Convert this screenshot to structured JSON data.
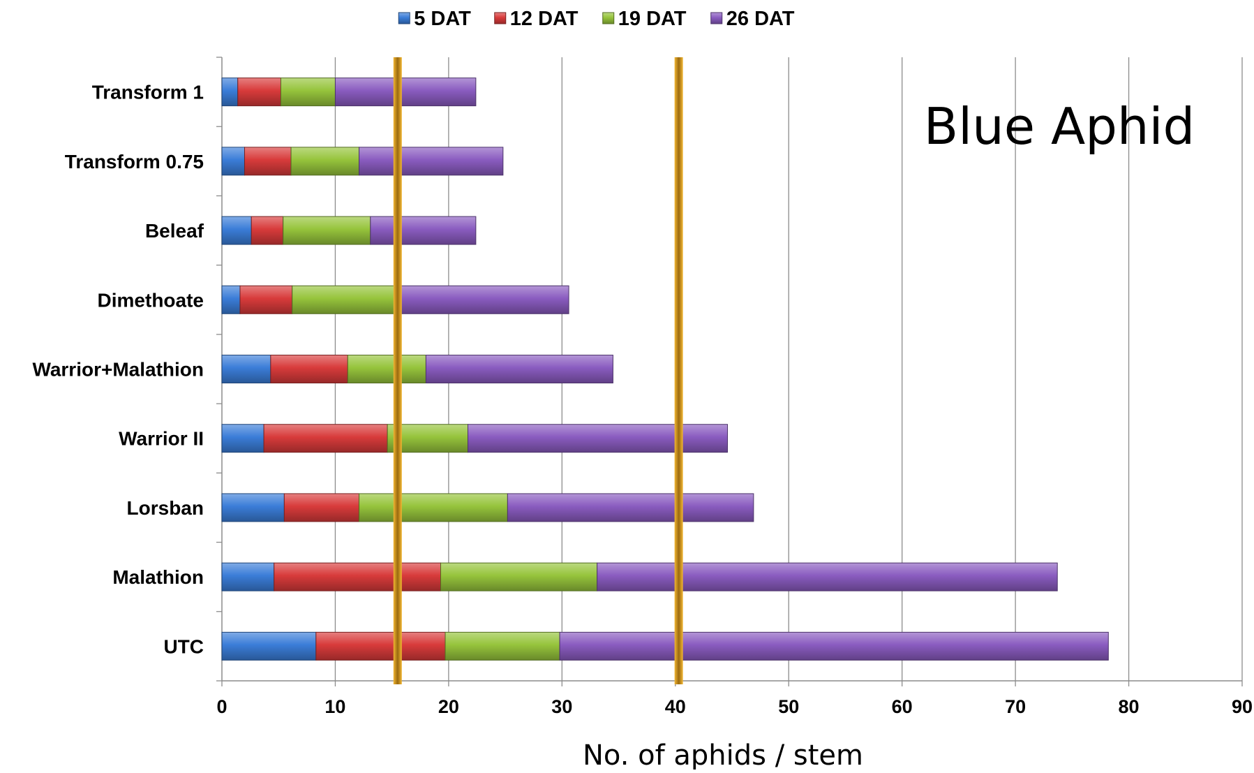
{
  "chart_data": {
    "type": "bar",
    "orientation": "horizontal",
    "stacked": true,
    "title": "Blue Aphid",
    "xlabel": "No. of aphids / stem",
    "ylabel": "",
    "xlim": [
      0,
      90
    ],
    "xticks": [
      0,
      10,
      20,
      30,
      40,
      50,
      60,
      70,
      80,
      90
    ],
    "grid": "vertical",
    "legend_position": "top",
    "categories": [
      "Transform 1",
      "Transform 0.75",
      "Beleaf",
      "Dimethoate",
      "Warrior+Malathion",
      "Warrior II",
      "Lorsban",
      "Malathion",
      "UTC"
    ],
    "series": [
      {
        "name": "5 DAT",
        "color": "#3b7dd8",
        "values": [
          1.4,
          2.0,
          2.6,
          1.6,
          4.3,
          3.7,
          5.5,
          4.6,
          8.3
        ]
      },
      {
        "name": "12 DAT",
        "color": "#d83b3b",
        "values": [
          3.8,
          4.1,
          2.8,
          4.6,
          6.8,
          10.9,
          6.6,
          14.7,
          11.4
        ]
      },
      {
        "name": "19 DAT",
        "color": "#96c43c",
        "values": [
          4.8,
          6.0,
          7.7,
          9.3,
          6.9,
          7.1,
          13.1,
          13.8,
          10.1
        ]
      },
      {
        "name": "26 DAT",
        "color": "#8a5cc0",
        "values": [
          12.4,
          12.7,
          9.3,
          15.1,
          16.5,
          22.9,
          21.7,
          40.6,
          48.4
        ]
      }
    ],
    "reference_lines": [
      {
        "x": 15.5,
        "color": "#e8a317"
      },
      {
        "x": 40.3,
        "color": "#e8a317"
      }
    ]
  }
}
